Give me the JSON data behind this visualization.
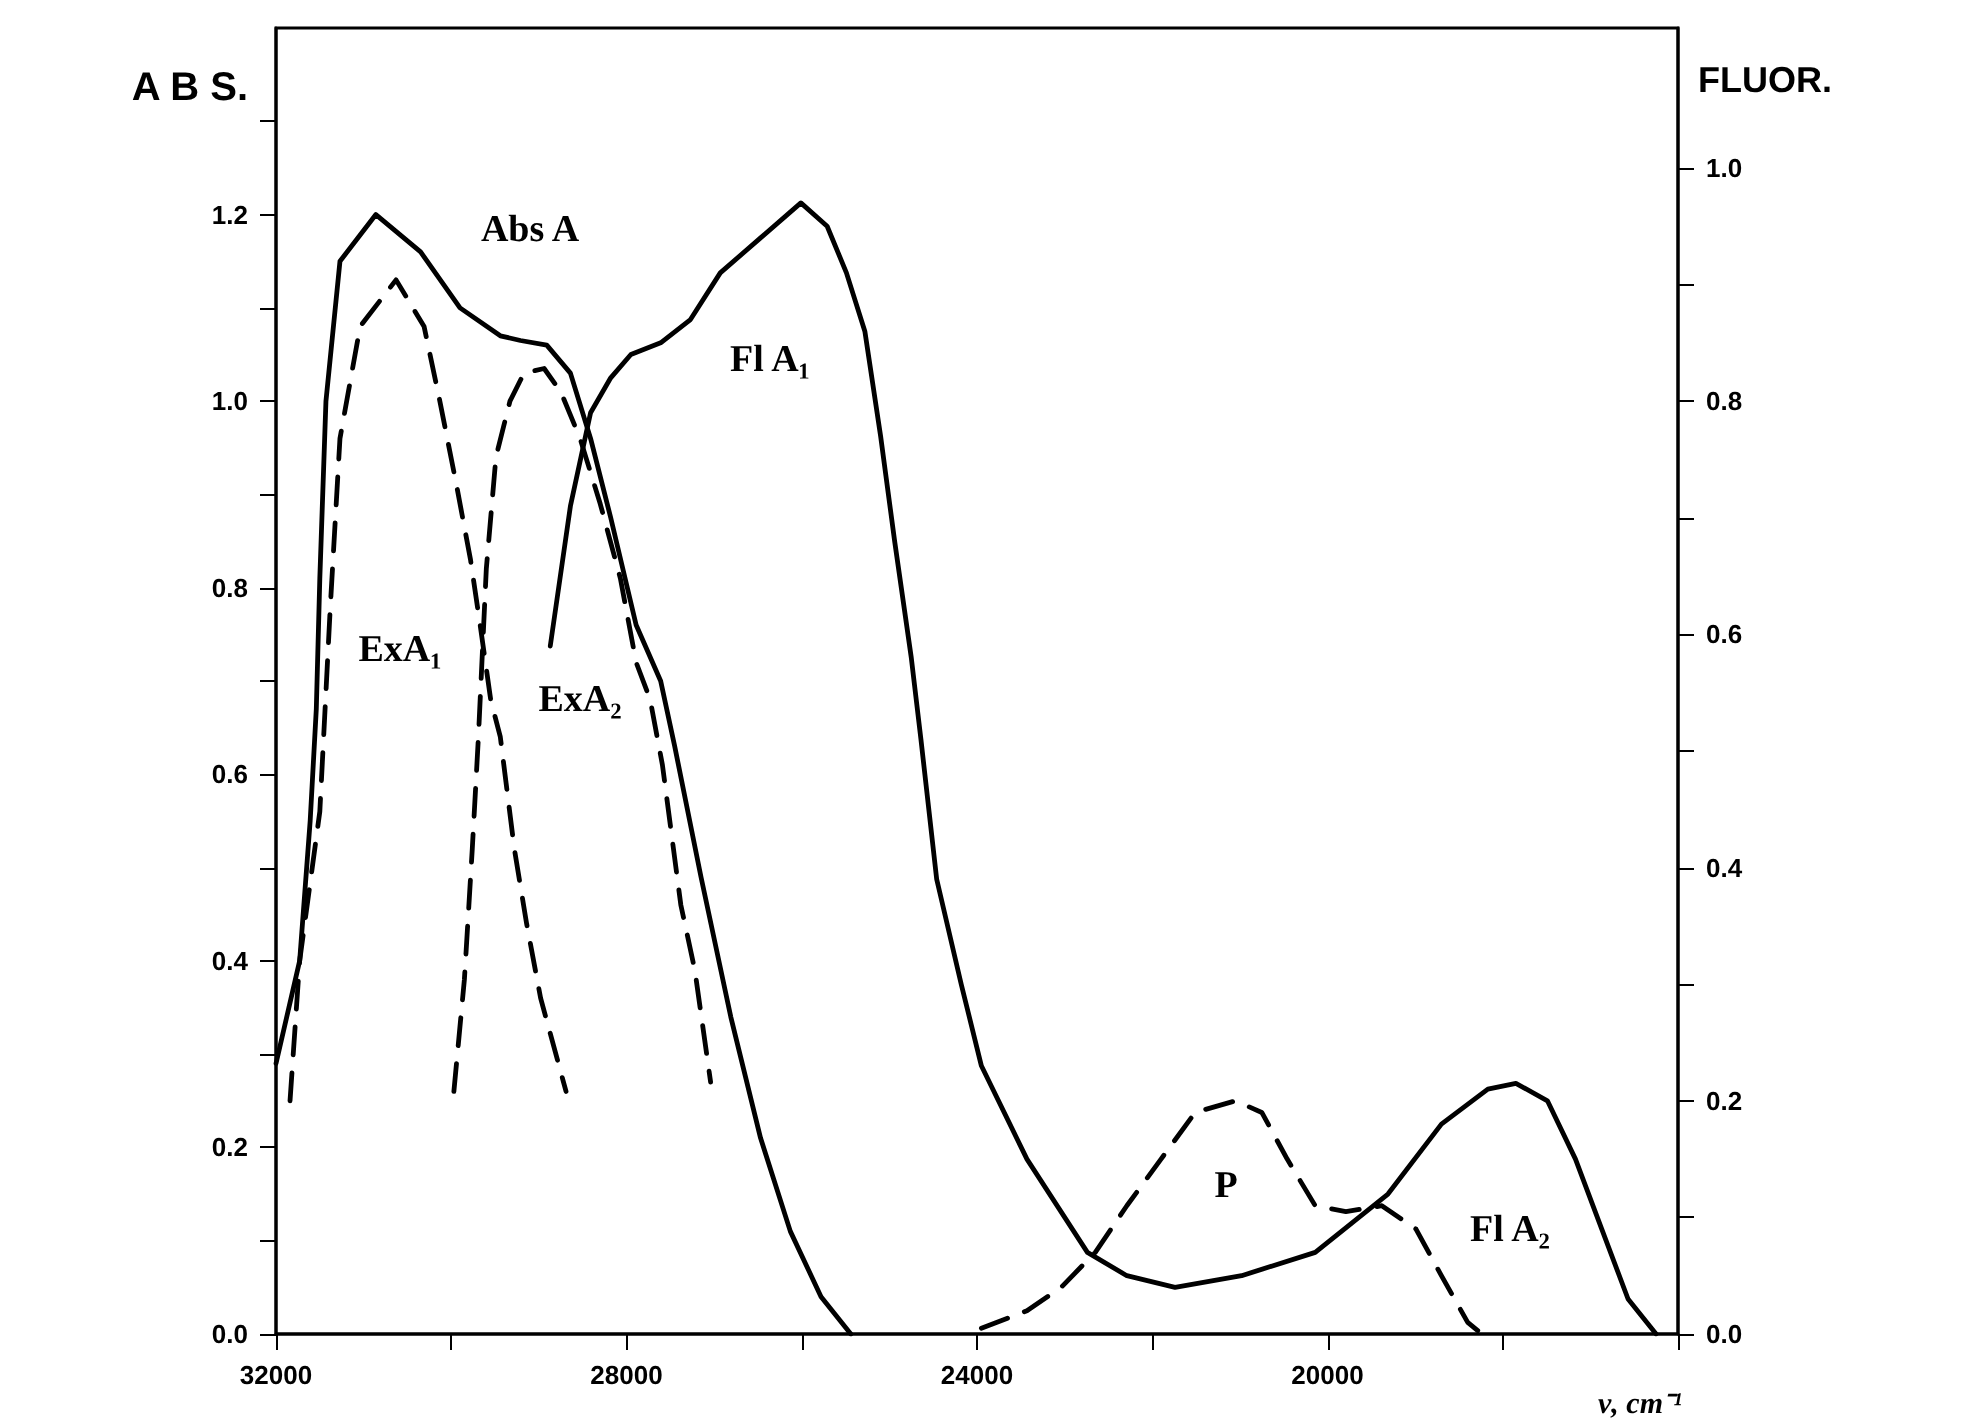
{
  "chart_data": {
    "type": "line",
    "xlabel": "ν, cm⁻¹",
    "ylabel": "A B S.",
    "y2label": "FLUOR.",
    "marker": "none",
    "grid": false,
    "xlim": [
      32000,
      16000
    ],
    "xticks": [
      {
        "value": 32000,
        "label": "32000"
      },
      {
        "value": 30000,
        "label": null
      },
      {
        "value": 28000,
        "label": "28000"
      },
      {
        "value": 26000,
        "label": null
      },
      {
        "value": 24000,
        "label": "24000"
      },
      {
        "value": 22000,
        "label": null
      },
      {
        "value": 20000,
        "label": "20000"
      },
      {
        "value": 18000,
        "label": null
      },
      {
        "value": 16000,
        "label": null
      }
    ],
    "ylim": [
      0,
      1.4
    ],
    "yticks": [
      {
        "value": 0,
        "label": "0.0"
      },
      {
        "value": 0.1,
        "label": null
      },
      {
        "value": 0.2,
        "label": "0.2"
      },
      {
        "value": 0.3,
        "label": null
      },
      {
        "value": 0.4,
        "label": "0.4"
      },
      {
        "value": 0.5,
        "label": null
      },
      {
        "value": 0.6,
        "label": "0.6"
      },
      {
        "value": 0.7,
        "label": null
      },
      {
        "value": 0.8,
        "label": "0.8"
      },
      {
        "value": 0.9,
        "label": null
      },
      {
        "value": 1,
        "label": "1.0"
      },
      {
        "value": 1.1,
        "label": null
      },
      {
        "value": 1.2,
        "label": "1.2"
      },
      {
        "value": 1.3,
        "label": null
      }
    ],
    "y2lim": [
      0,
      1.12
    ],
    "y2ticks": [
      {
        "value": 0,
        "label": "0.0"
      },
      {
        "value": 0.1,
        "label": null
      },
      {
        "value": 0.2,
        "label": "0.2"
      },
      {
        "value": 0.3,
        "label": null
      },
      {
        "value": 0.4,
        "label": "0.4"
      },
      {
        "value": 0.5,
        "label": null
      },
      {
        "value": 0.6,
        "label": "0.6"
      },
      {
        "value": 0.7,
        "label": null
      },
      {
        "value": 0.8,
        "label": "0.8"
      },
      {
        "value": 0.9,
        "label": null
      },
      {
        "value": 1,
        "label": "1.0"
      }
    ],
    "series": [
      {
        "color": "#000000",
        "line_style": "solid",
        "x": [
          32000,
          31730,
          31610,
          31540,
          31500,
          31430,
          31270,
          30860,
          30350,
          29900,
          29440,
          29210,
          28910,
          28640,
          28410,
          28180,
          27890,
          27610,
          27450,
          27150,
          26810,
          26470,
          26130,
          25780,
          25440
        ],
        "values": [
          0.29,
          0.4,
          0.55,
          0.67,
          0.81,
          1.0,
          1.15,
          1.2,
          1.16,
          1.1,
          1.07,
          1.065,
          1.06,
          1.03,
          0.96,
          0.875,
          0.76,
          0.7,
          0.63,
          0.49,
          0.34,
          0.21,
          0.11,
          0.04,
          0.0
        ]
      },
      {
        "color": "#000000",
        "line_style": "dashed",
        "x": [
          31840,
          31730,
          31500,
          31380,
          31270,
          31040,
          30630,
          30310,
          30130,
          29940,
          29780,
          29670,
          29550,
          29440,
          29280,
          29140,
          28980,
          28690
        ],
        "values": [
          0.25,
          0.4,
          0.56,
          0.78,
          0.96,
          1.08,
          1.13,
          1.08,
          1.0,
          0.91,
          0.83,
          0.76,
          0.68,
          0.64,
          0.52,
          0.44,
          0.36,
          0.26
        ]
      },
      {
        "color": "#000000",
        "line_style": "dashed",
        "x": [
          29970,
          29850,
          29760,
          29690,
          29600,
          29490,
          29330,
          29170,
          28940,
          28750,
          28530,
          28300,
          28070,
          27890,
          27730,
          27590,
          27380,
          27220,
          27040
        ],
        "values": [
          0.26,
          0.38,
          0.52,
          0.64,
          0.82,
          0.94,
          1.0,
          1.03,
          1.035,
          1.01,
          0.96,
          0.89,
          0.81,
          0.72,
          0.68,
          0.61,
          0.46,
          0.39,
          0.27
        ]
      },
      {
        "color": "#000000",
        "line_style": "solid",
        "axis": "y2",
        "x": [
          28870,
          28640,
          28410,
          28180,
          27950,
          27610,
          27270,
          26930,
          26470,
          26010,
          25710,
          25490,
          25280,
          25100,
          24940,
          24750,
          24640,
          24460,
          24180,
          23950,
          23430,
          22740,
          22290,
          21740,
          20980,
          20140,
          19310,
          18700,
          18170,
          17850,
          17490,
          17170,
          16870,
          16570,
          16250
        ],
        "values": [
          0.59,
          0.71,
          0.79,
          0.82,
          0.84,
          0.85,
          0.87,
          0.91,
          0.94,
          0.97,
          0.95,
          0.91,
          0.86,
          0.77,
          0.68,
          0.58,
          0.51,
          0.39,
          0.3,
          0.23,
          0.15,
          0.07,
          0.05,
          0.04,
          0.05,
          0.07,
          0.12,
          0.18,
          0.21,
          0.215,
          0.2,
          0.15,
          0.09,
          0.03,
          0.0
        ]
      },
      {
        "color": "#000000",
        "line_style": "dashed",
        "axis": "y2",
        "x": [
          23950,
          23430,
          23040,
          22650,
          22290,
          21900,
          21510,
          21050,
          20750,
          20460,
          20140,
          19790,
          19380,
          18990,
          18700,
          18400,
          18240
        ],
        "values": [
          0.005,
          0.02,
          0.04,
          0.07,
          0.11,
          0.15,
          0.19,
          0.2,
          0.19,
          0.15,
          0.11,
          0.105,
          0.11,
          0.09,
          0.05,
          0.01,
          0.0
        ]
      }
    ],
    "annotations": [
      "Abs A",
      "Fl A₁",
      "ExA₁",
      "ExA₂",
      "P",
      "Fl A₂"
    ]
  }
}
